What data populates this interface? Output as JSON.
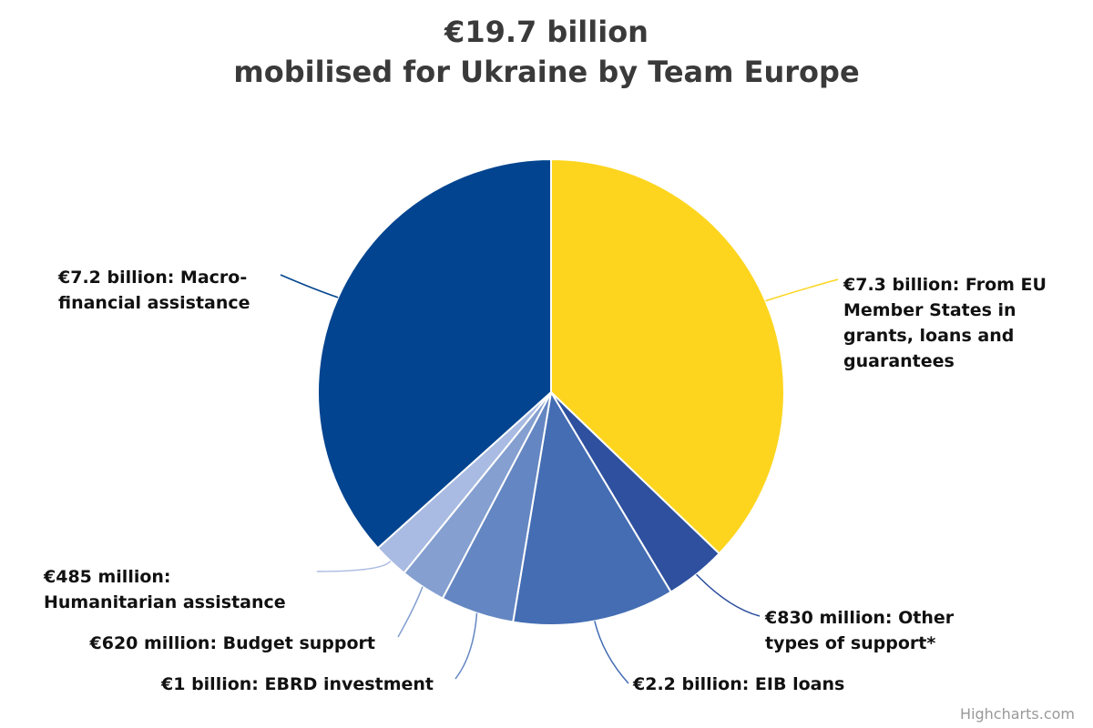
{
  "chart_data": {
    "type": "pie",
    "title": [
      "€19.7 billion",
      "mobilised for Ukraine by Team Europe"
    ],
    "unit": "EUR billion",
    "slices": [
      {
        "value": 7.3,
        "color": "#FDD51E",
        "label": [
          "€7.3 billion: From EU",
          "Member States in",
          "grants, loans and",
          "guarantees"
        ]
      },
      {
        "value": 0.83,
        "color": "#2E509F",
        "label": [
          "€830 million: Other",
          "types of support*"
        ]
      },
      {
        "value": 2.2,
        "color": "#446DB3",
        "label": [
          "€2.2 billion: EIB loans"
        ]
      },
      {
        "value": 1.0,
        "color": "#6486C2",
        "label": [
          "€1 billion: EBRD investment"
        ]
      },
      {
        "value": 0.62,
        "color": "#849FD0",
        "label": [
          "€620 million: Budget support"
        ]
      },
      {
        "value": 0.485,
        "color": "#A9BBE2",
        "label": [
          "€485 million:",
          "Humanitarian assistance"
        ]
      },
      {
        "value": 7.2,
        "color": "#02448F",
        "label": [
          "€7.2 billion: Macro-",
          "financial assistance"
        ]
      }
    ],
    "legend": "none",
    "data_labels": true,
    "credit": "Highcharts.com"
  }
}
